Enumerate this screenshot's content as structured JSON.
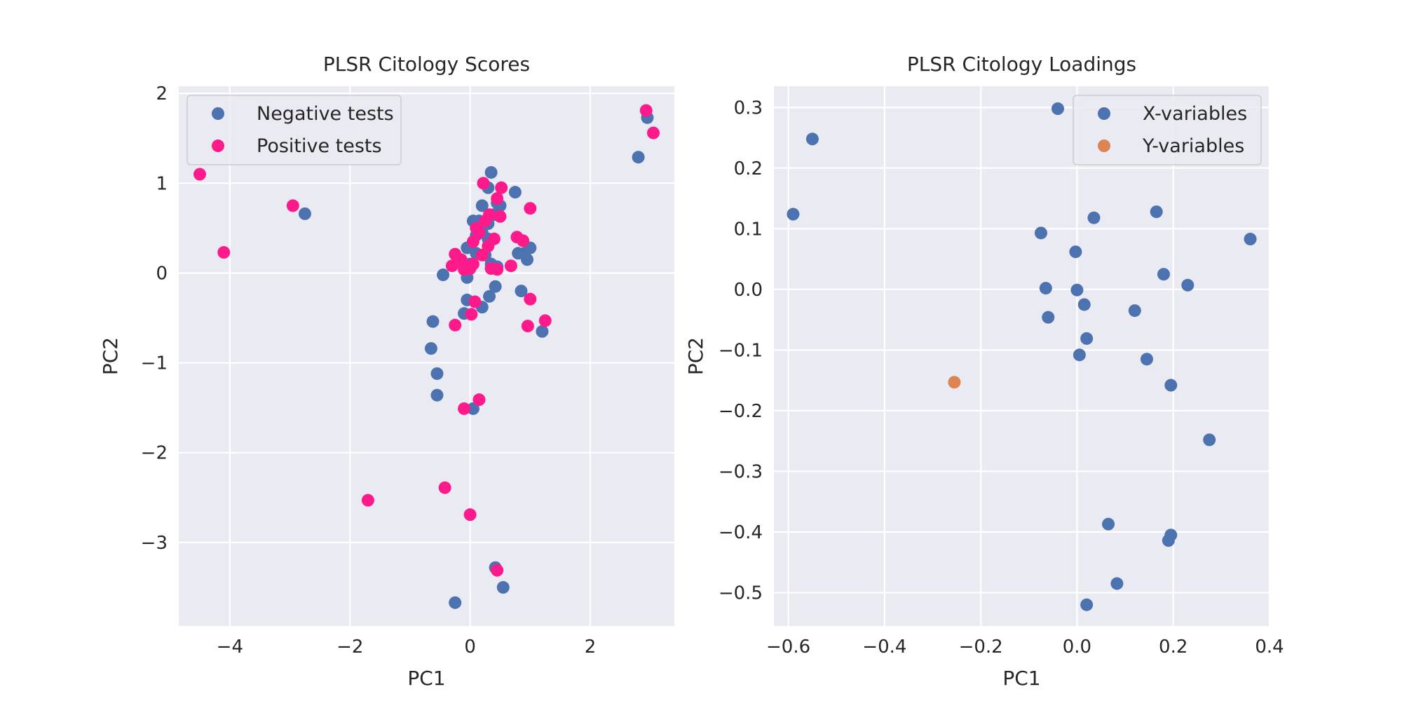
{
  "colors": {
    "background": "#ffffff",
    "axes_face": "#eaeaf2",
    "grid": "#ffffff",
    "text": "#262626",
    "negative": "#4c72b0",
    "positive": "#ff1a8c",
    "x_variables": "#4c72b0",
    "y_variables": "#dd8452"
  },
  "chart_data": [
    {
      "type": "scatter",
      "title": "PLSR Citology Scores",
      "xlabel": "PC1",
      "ylabel": "PC2",
      "xlim": [
        -4.85,
        3.4
      ],
      "ylim": [
        -3.93,
        2.08
      ],
      "xticks": [
        -4,
        -2,
        0,
        2
      ],
      "yticks": [
        -3,
        -2,
        -1,
        0,
        1,
        2
      ],
      "xtick_labels": [
        "−4",
        "−2",
        "0",
        "2"
      ],
      "ytick_labels": [
        "−3",
        "−2",
        "−1",
        "0",
        "1",
        "2"
      ],
      "grid": true,
      "legend_position": "upper-left",
      "series": [
        {
          "name": "Negative tests",
          "color": "#4c72b0",
          "points": [
            [
              -2.75,
              0.66
            ],
            [
              2.8,
              1.29
            ],
            [
              2.95,
              1.73
            ],
            [
              0.35,
              1.12
            ],
            [
              0.75,
              0.9
            ],
            [
              0.3,
              0.95
            ],
            [
              0.2,
              0.75
            ],
            [
              0.45,
              0.78
            ],
            [
              0.5,
              0.75
            ],
            [
              0.05,
              0.58
            ],
            [
              0.15,
              0.58
            ],
            [
              0.3,
              0.55
            ],
            [
              0.4,
              0.65
            ],
            [
              0.2,
              0.45
            ],
            [
              0.1,
              0.42
            ],
            [
              0.3,
              0.38
            ],
            [
              -0.05,
              0.28
            ],
            [
              0.1,
              0.22
            ],
            [
              0.25,
              0.2
            ],
            [
              0.0,
              0.1
            ],
            [
              -0.15,
              0.12
            ],
            [
              0.35,
              0.1
            ],
            [
              0.45,
              0.07
            ],
            [
              -0.45,
              -0.02
            ],
            [
              -0.05,
              -0.05
            ],
            [
              0.8,
              0.22
            ],
            [
              0.9,
              0.22
            ],
            [
              1.0,
              0.28
            ],
            [
              0.95,
              0.15
            ],
            [
              0.42,
              -0.15
            ],
            [
              0.85,
              -0.2
            ],
            [
              0.32,
              -0.26
            ],
            [
              -0.05,
              -0.3
            ],
            [
              0.2,
              -0.38
            ],
            [
              -0.1,
              -0.45
            ],
            [
              1.2,
              -0.65
            ],
            [
              -0.62,
              -0.54
            ],
            [
              -0.65,
              -0.84
            ],
            [
              -0.55,
              -1.12
            ],
            [
              -0.55,
              -1.36
            ],
            [
              0.05,
              -1.51
            ],
            [
              0.42,
              -3.28
            ],
            [
              0.55,
              -3.5
            ],
            [
              -0.25,
              -3.67
            ]
          ]
        },
        {
          "name": "Positive tests",
          "color": "#ff1a8c",
          "points": [
            [
              -4.5,
              1.1
            ],
            [
              -4.1,
              0.23
            ],
            [
              -2.95,
              0.75
            ],
            [
              2.93,
              1.81
            ],
            [
              3.05,
              1.56
            ],
            [
              0.22,
              1.0
            ],
            [
              0.52,
              0.95
            ],
            [
              0.45,
              0.83
            ],
            [
              1.0,
              0.72
            ],
            [
              0.32,
              0.65
            ],
            [
              0.5,
              0.63
            ],
            [
              0.25,
              0.58
            ],
            [
              0.1,
              0.5
            ],
            [
              0.15,
              0.45
            ],
            [
              0.4,
              0.38
            ],
            [
              0.05,
              0.35
            ],
            [
              0.3,
              0.3
            ],
            [
              0.78,
              0.4
            ],
            [
              0.88,
              0.36
            ],
            [
              -0.25,
              0.21
            ],
            [
              -0.15,
              0.15
            ],
            [
              0.2,
              0.2
            ],
            [
              -0.3,
              0.08
            ],
            [
              0.0,
              0.05
            ],
            [
              0.05,
              0.1
            ],
            [
              0.35,
              0.05
            ],
            [
              0.45,
              0.04
            ],
            [
              0.68,
              0.08
            ],
            [
              -0.1,
              0.04
            ],
            [
              0.08,
              -0.32
            ],
            [
              1.0,
              -0.29
            ],
            [
              0.02,
              -0.46
            ],
            [
              -0.25,
              -0.58
            ],
            [
              0.96,
              -0.59
            ],
            [
              1.25,
              -0.53
            ],
            [
              0.15,
              -1.41
            ],
            [
              -0.1,
              -1.51
            ],
            [
              -1.7,
              -2.53
            ],
            [
              -0.42,
              -2.39
            ],
            [
              0.0,
              -2.69
            ],
            [
              0.45,
              -3.31
            ]
          ]
        }
      ]
    },
    {
      "type": "scatter",
      "title": "PLSR Citology Loadings",
      "xlabel": "PC1",
      "ylabel": "PC2",
      "xlim": [
        -0.63,
        0.4
      ],
      "ylim": [
        -0.555,
        0.335
      ],
      "xticks": [
        -0.6,
        -0.4,
        -0.2,
        0.0,
        0.2,
        0.4
      ],
      "yticks": [
        -0.5,
        -0.4,
        -0.3,
        -0.2,
        -0.1,
        0.0,
        0.1,
        0.2,
        0.3
      ],
      "xtick_labels": [
        "−0.6",
        "−0.4",
        "−0.2",
        "0.0",
        "0.2",
        "0.4"
      ],
      "ytick_labels": [
        "−0.5",
        "−0.4",
        "−0.3",
        "−0.2",
        "−0.1",
        "0.0",
        "0.1",
        "0.2",
        "0.3"
      ],
      "grid": true,
      "legend_position": "upper-right",
      "series": [
        {
          "name": "X-variables",
          "color": "#4c72b0",
          "points": [
            [
              -0.55,
              0.248
            ],
            [
              -0.59,
              0.124
            ],
            [
              -0.04,
              0.298
            ],
            [
              0.035,
              0.118
            ],
            [
              0.165,
              0.128
            ],
            [
              -0.075,
              0.093
            ],
            [
              -0.003,
              0.062
            ],
            [
              0.36,
              0.083
            ],
            [
              0.18,
              0.025
            ],
            [
              0.23,
              0.007
            ],
            [
              -0.065,
              0.002
            ],
            [
              0.0,
              -0.001
            ],
            [
              0.015,
              -0.025
            ],
            [
              -0.06,
              -0.046
            ],
            [
              0.12,
              -0.035
            ],
            [
              0.02,
              -0.081
            ],
            [
              0.005,
              -0.108
            ],
            [
              0.145,
              -0.115
            ],
            [
              0.195,
              -0.158
            ],
            [
              0.275,
              -0.248
            ],
            [
              0.065,
              -0.387
            ],
            [
              0.195,
              -0.405
            ],
            [
              0.19,
              -0.414
            ],
            [
              0.083,
              -0.485
            ],
            [
              0.02,
              -0.52
            ]
          ]
        },
        {
          "name": "Y-variables",
          "color": "#dd8452",
          "points": [
            [
              -0.255,
              -0.153
            ]
          ]
        }
      ]
    }
  ]
}
